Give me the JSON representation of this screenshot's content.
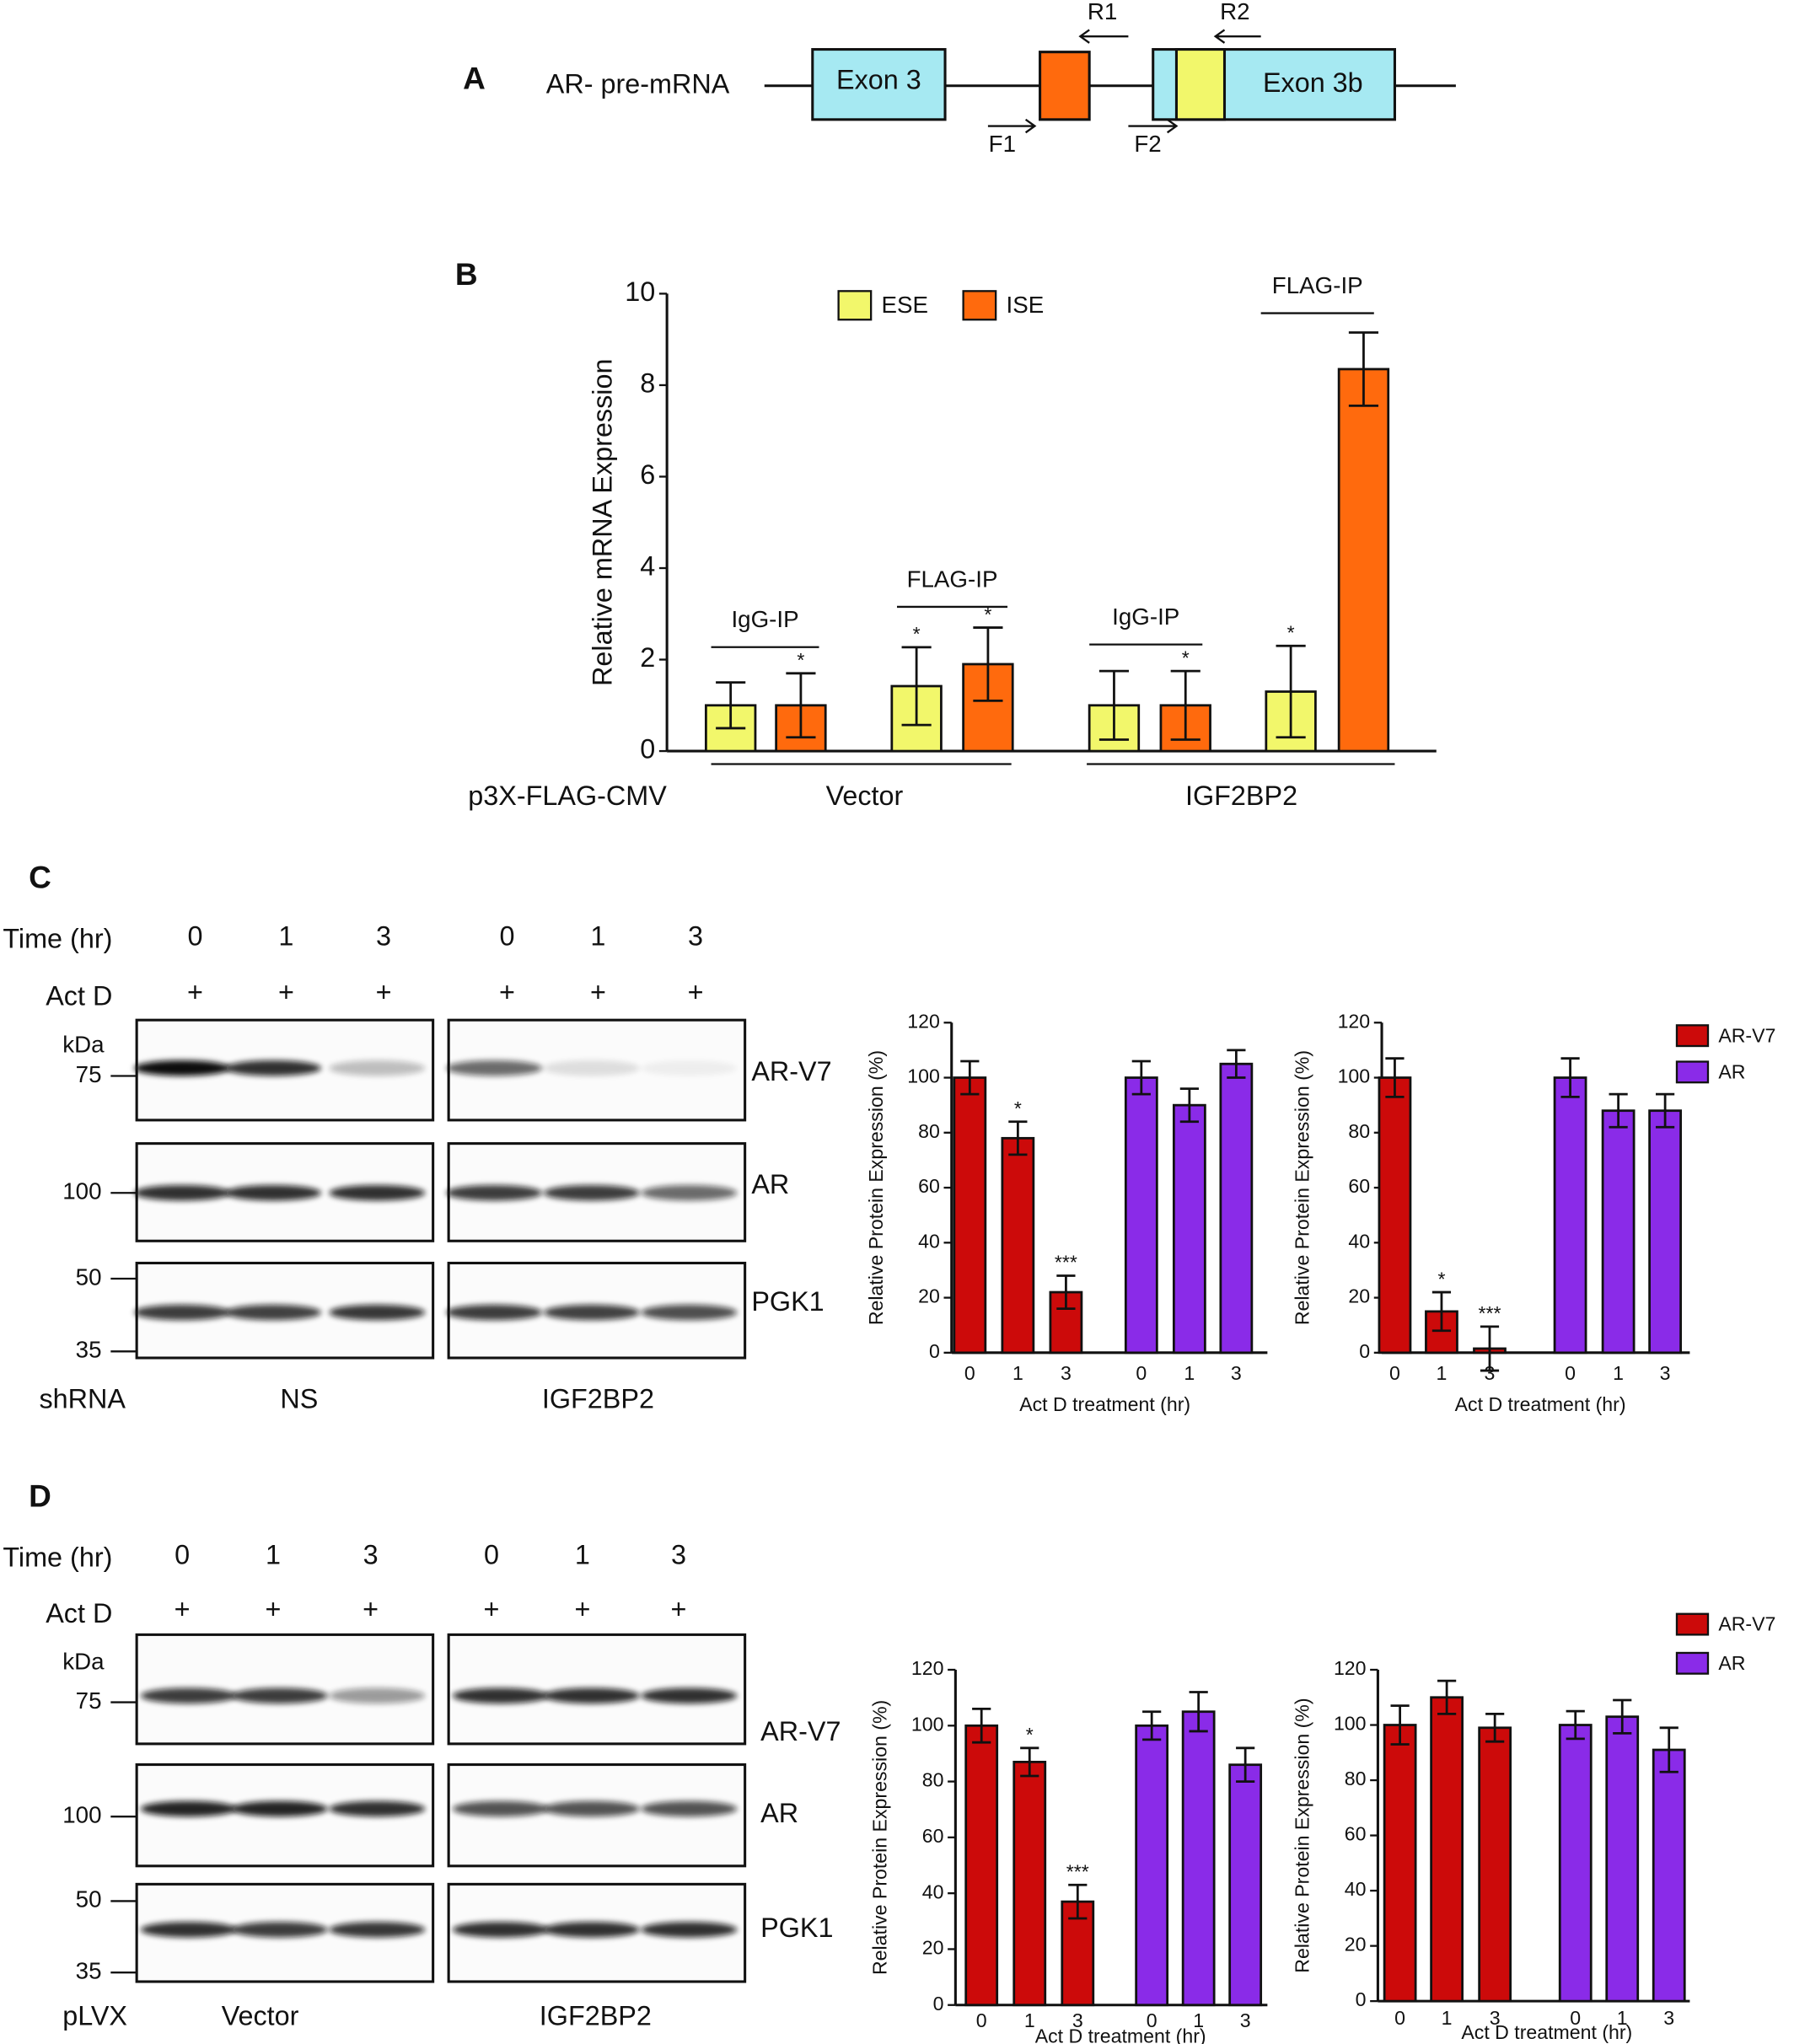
{
  "panel_labels": [
    "A",
    "B",
    "C",
    "D"
  ],
  "diagram": {
    "title": "AR- pre-mRNA",
    "exons": [
      "Exon 3",
      "Exon 3b"
    ],
    "primers": [
      "R1",
      "R2",
      "F1",
      "F2"
    ]
  },
  "chart_data": [
    {
      "type": "bar",
      "y_label": "Relative mRNA Expression",
      "ylim": [
        0,
        10
      ],
      "yticks": [
        0,
        2,
        4,
        6,
        8,
        10
      ],
      "legend": true,
      "series": [
        {
          "name": "ESE",
          "color": "#f2f76b",
          "values": [
            1.0,
            1.42,
            1.0,
            1.3
          ],
          "errors": [
            0.5,
            0.85,
            0.75,
            1.0
          ],
          "significance": [
            null,
            "*",
            null,
            "*"
          ]
        },
        {
          "name": "ISE",
          "color": "#ff6a0d",
          "values": [
            1.0,
            1.9,
            1.0,
            8.35
          ],
          "errors": [
            0.7,
            0.8,
            0.75,
            0.8
          ],
          "significance": [
            "*",
            "*",
            "*",
            null
          ]
        }
      ],
      "groups": [
        "IgG-IP",
        "FLAG-IP",
        "IgG-IP",
        "FLAG-IP"
      ],
      "row_label": "p3X-FLAG-CMV",
      "constructs": [
        "Vector",
        "IGF2BP2"
      ]
    },
    {
      "type": "bar",
      "y_label": "Relative Protein Expression (%)",
      "x_label": "Act D treatment (hr)",
      "ylim": [
        0,
        120
      ],
      "yticks": [
        0,
        20,
        40,
        60,
        80,
        100,
        120
      ],
      "legend": false,
      "categories": [
        "0",
        "1",
        "3"
      ],
      "series": [
        {
          "name": "AR-V7",
          "color": "#cc0a0a",
          "values": [
            100,
            78,
            22
          ],
          "errors": [
            6,
            6,
            6
          ],
          "significance": [
            null,
            "*",
            "***"
          ]
        },
        {
          "name": "AR",
          "color": "#8a2be8",
          "values": [
            100,
            90,
            105
          ],
          "errors": [
            6,
            6,
            5
          ]
        }
      ]
    },
    {
      "type": "bar",
      "y_label": "Relative Protein Expression (%)",
      "x_label": "Act D treatment (hr)",
      "ylim": [
        0,
        120
      ],
      "yticks": [
        0,
        20,
        40,
        60,
        80,
        100,
        120
      ],
      "legend": true,
      "categories": [
        "0",
        "1",
        "3"
      ],
      "series": [
        {
          "name": "AR-V7",
          "color": "#cc0a0a",
          "values": [
            100,
            15,
            1.5
          ],
          "errors": [
            7,
            7,
            8
          ],
          "significance": [
            null,
            "*",
            "***"
          ]
        },
        {
          "name": "AR",
          "color": "#8a2be8",
          "values": [
            100,
            88,
            88
          ],
          "errors": [
            7,
            6,
            6
          ]
        }
      ]
    },
    {
      "type": "bar",
      "y_label": "Relative Protein Expression (%)",
      "x_label": "Act D treatment (hr)",
      "ylim": [
        0,
        120
      ],
      "yticks": [
        0,
        20,
        40,
        60,
        80,
        100,
        120
      ],
      "legend": false,
      "categories": [
        "0",
        "1",
        "3"
      ],
      "series": [
        {
          "name": "AR-V7",
          "color": "#cc0a0a",
          "values": [
            100,
            87,
            37
          ],
          "errors": [
            6,
            5,
            6
          ],
          "significance": [
            null,
            "*",
            "***"
          ]
        },
        {
          "name": "AR",
          "color": "#8a2be8",
          "values": [
            100,
            105,
            86
          ],
          "errors": [
            5,
            7,
            6
          ]
        }
      ]
    },
    {
      "type": "bar",
      "y_label": "Relative Protein Expression (%)",
      "x_label": "Act D treatment (hr)",
      "ylim": [
        0,
        120
      ],
      "yticks": [
        0,
        20,
        40,
        60,
        80,
        100,
        120
      ],
      "legend": true,
      "categories": [
        "0",
        "1",
        "3"
      ],
      "series": [
        {
          "name": "AR-V7",
          "color": "#cc0a0a",
          "values": [
            100,
            110,
            99
          ],
          "errors": [
            7,
            6,
            5
          ]
        },
        {
          "name": "AR",
          "color": "#8a2be8",
          "values": [
            100,
            103,
            91
          ],
          "errors": [
            5,
            6,
            8
          ]
        }
      ]
    }
  ],
  "blots": [
    {
      "time_label": "Time (hr)",
      "times": [
        "0",
        "1",
        "3",
        "0",
        "1",
        "3"
      ],
      "treatment_label": "Act D",
      "treatment": [
        "+",
        "+",
        "+",
        "+",
        "+",
        "+"
      ],
      "kda_label": "kDa",
      "markers": [
        75,
        100,
        50,
        35
      ],
      "bands": [
        "AR-V7",
        "AR",
        "PGK1"
      ],
      "construct_label": "shRNA",
      "constructs": [
        "NS",
        "IGF2BP2"
      ]
    },
    {
      "time_label": "Time (hr)",
      "times": [
        "0",
        "1",
        "3",
        "0",
        "1",
        "3"
      ],
      "treatment_label": "Act D",
      "treatment": [
        "+",
        "+",
        "+",
        "+",
        "+",
        "+"
      ],
      "kda_label": "kDa",
      "markers": [
        75,
        100,
        50,
        35
      ],
      "bands": [
        "AR-V7",
        "AR",
        "PGK1"
      ],
      "construct_label": "pLVX",
      "constructs": [
        "Vector",
        "IGF2BP2"
      ]
    }
  ]
}
